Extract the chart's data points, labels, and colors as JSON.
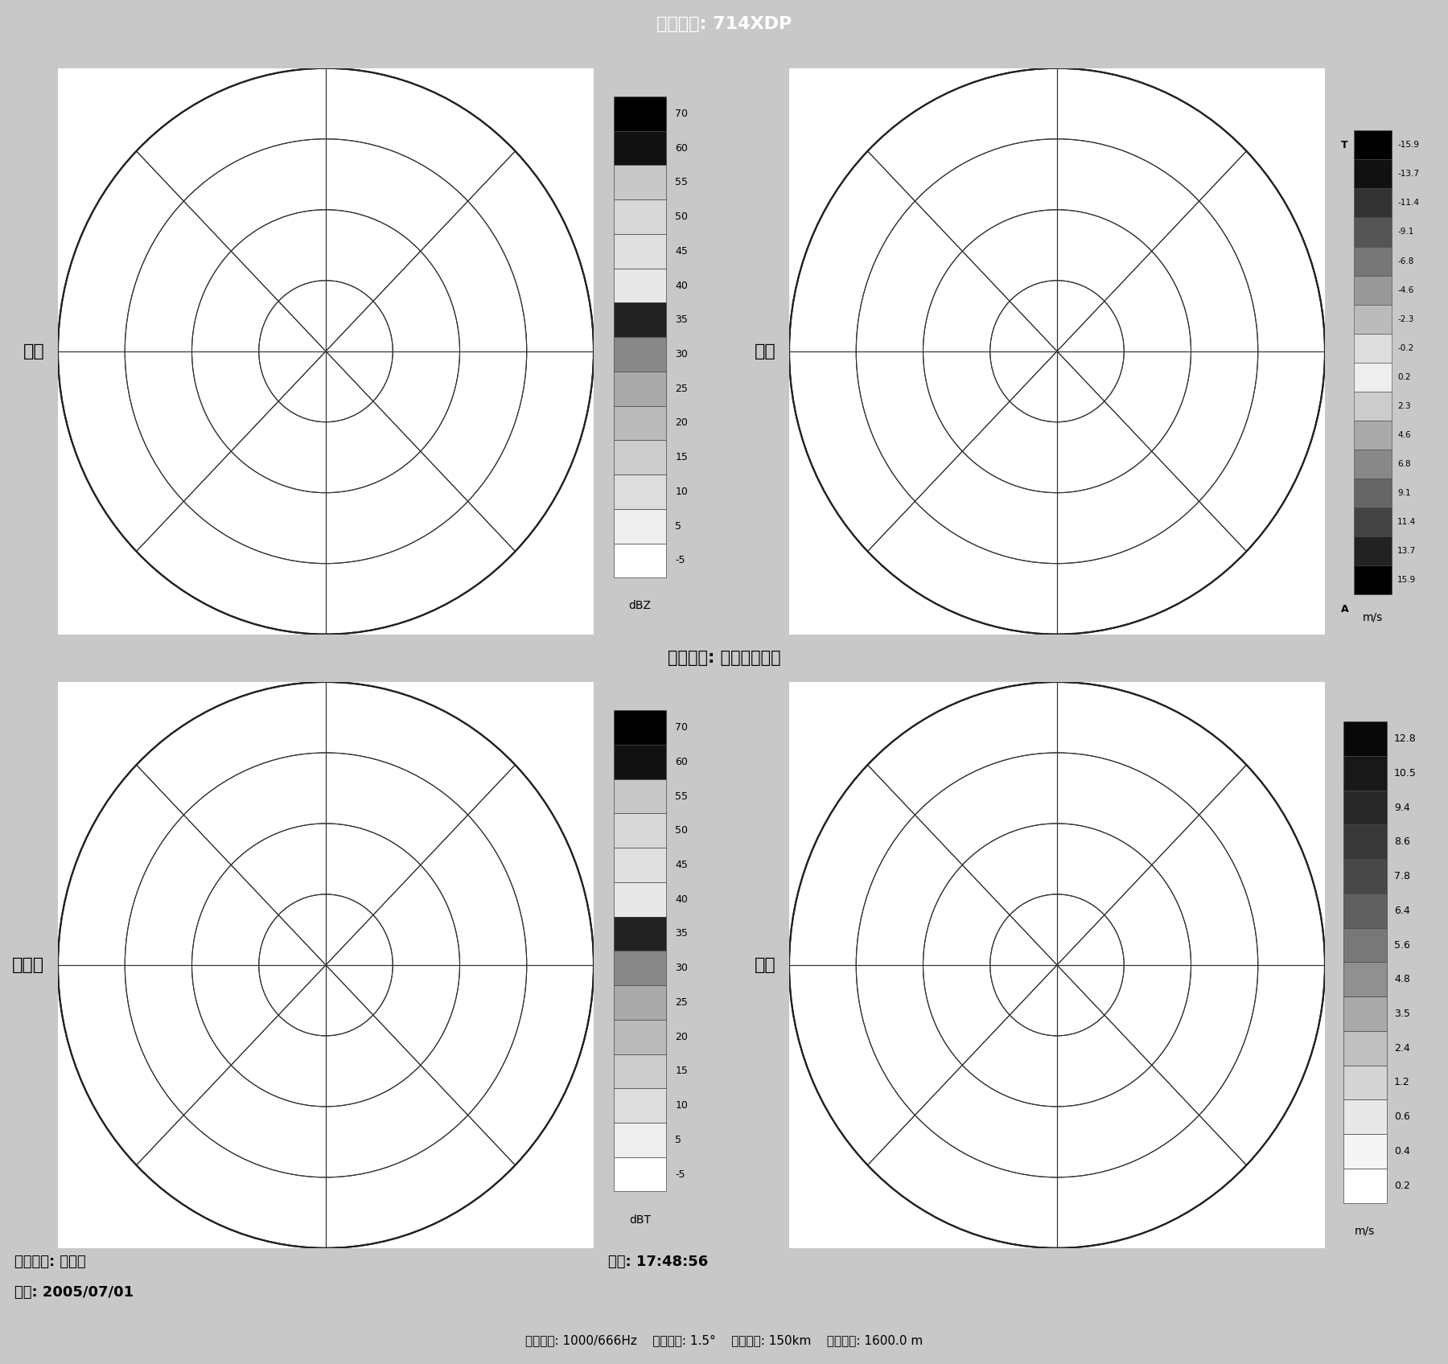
{
  "title": "雷达型号: 714XDP",
  "station_label": "雷达站名: 寡旱所平凉站",
  "panel_labels": [
    "强度",
    "速度",
    "无订正",
    "谱宽"
  ],
  "colorbar1_ticks": [
    "70",
    "60",
    "55",
    "50",
    "45",
    "40",
    "35",
    "30",
    "25",
    "20",
    "15",
    "10",
    "5",
    "-5"
  ],
  "colorbar1_colors": [
    "#000000",
    "#111111",
    "#c8c8c8",
    "#d8d8d8",
    "#e0e0e0",
    "#e8e8e8",
    "#222222",
    "#888888",
    "#aaaaaa",
    "#bbbbbb",
    "#cccccc",
    "#dddddd",
    "#eeeeee",
    "#ffffff"
  ],
  "colorbar1_label": "dBZ",
  "colorbar2_ticks": [
    "-15.9",
    "-13.7",
    "-11.4",
    "-9.1",
    "-6.8",
    "-4.6",
    "-2.3",
    "-0.2",
    "0.2",
    "2.3",
    "4.6",
    "6.8",
    "9.1",
    "11.4",
    "13.7",
    "15.9"
  ],
  "colorbar2_colors": [
    "#000000",
    "#111111",
    "#333333",
    "#555555",
    "#777777",
    "#999999",
    "#bbbbbb",
    "#dddddd",
    "#eeeeee",
    "#cccccc",
    "#aaaaaa",
    "#888888",
    "#666666",
    "#444444",
    "#222222",
    "#000000"
  ],
  "colorbar2_label": "m/s",
  "colorbar2_top": "T",
  "colorbar2_bottom": "A",
  "colorbar3_ticks": [
    "70",
    "60",
    "55",
    "50",
    "45",
    "40",
    "35",
    "30",
    "25",
    "20",
    "15",
    "10",
    "5",
    "-5"
  ],
  "colorbar3_colors": [
    "#000000",
    "#111111",
    "#c8c8c8",
    "#d8d8d8",
    "#e0e0e0",
    "#e8e8e8",
    "#222222",
    "#888888",
    "#aaaaaa",
    "#bbbbbb",
    "#cccccc",
    "#dddddd",
    "#eeeeee",
    "#ffffff"
  ],
  "colorbar3_label": "dBT",
  "colorbar4_ticks": [
    "12.8",
    "10.5",
    "9.4",
    "8.6",
    "7.8",
    "6.4",
    "5.6",
    "4.8",
    "3.5",
    "2.4",
    "1.2",
    "0.6",
    "0.4",
    "0.2"
  ],
  "colorbar4_colors": [
    "#080808",
    "#181818",
    "#282828",
    "#383838",
    "#484848",
    "#606060",
    "#787878",
    "#909090",
    "#aaaaaa",
    "#c0c0c0",
    "#d5d5d5",
    "#e8e8e8",
    "#f5f5f5",
    "#ffffff"
  ],
  "colorbar4_label": "m/s",
  "bottom_line1_left": "极化方式: 双极化",
  "bottom_line2_left": "日期: 2005/07/01",
  "bottom_line1_right": "时间: 17:48:56",
  "bottom_line3": "重复频率: 1000/666Hz    天线仰角: 1.5°    显示距离: 150km    海拘高度: 1600.0 m",
  "bg_color": "#c8c8c8",
  "seed": 42
}
